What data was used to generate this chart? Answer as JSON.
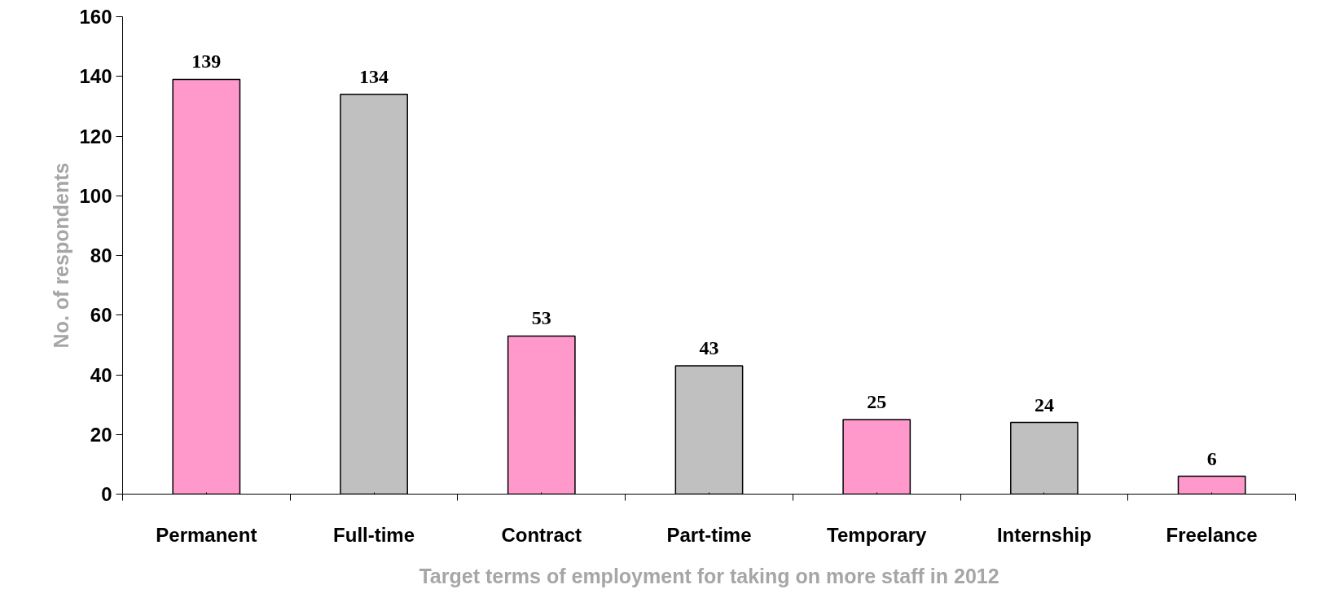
{
  "chart_data": {
    "type": "bar",
    "categories": [
      "Permanent",
      "Full-time",
      "Contract",
      "Part-time",
      "Temporary",
      "Internship",
      "Freelance"
    ],
    "values": [
      139,
      134,
      53,
      43,
      25,
      24,
      6
    ],
    "colors": [
      "#ff99cc",
      "#c0c0c0",
      "#ff99cc",
      "#c0c0c0",
      "#ff99cc",
      "#c0c0c0",
      "#ff99cc"
    ],
    "xlabel": "Target terms of employment for taking on more staff in 2012",
    "ylabel": "No. of respondents",
    "ylim": [
      0,
      160
    ],
    "yticks": [
      0,
      20,
      40,
      60,
      80,
      100,
      120,
      140,
      160
    ],
    "data_labels": true,
    "grid": false
  }
}
